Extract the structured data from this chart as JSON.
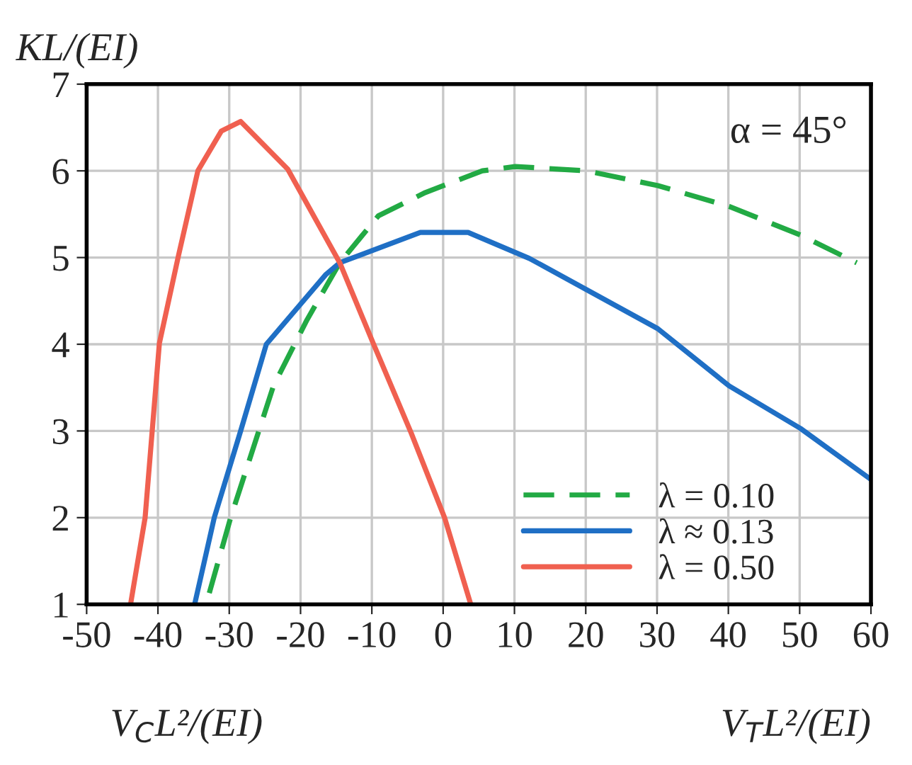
{
  "chart_data": {
    "type": "line",
    "ylabel": "KL/(EI)",
    "xlabel": "V$_{C}$L²/(EI)",
    "annotations": [
      "V$_{T}$L²/(EI)",
      "α = 45°"
    ],
    "xlim": [
      -50,
      60
    ],
    "xticks": [
      -50,
      -40,
      -30,
      -20,
      -10,
      0,
      10,
      20,
      30,
      40,
      50,
      60
    ],
    "ylim": [
      1,
      7
    ],
    "yticks": [
      1,
      2,
      3,
      4,
      5,
      6,
      7
    ],
    "grid": true,
    "legend": "bottom right",
    "marker": "none",
    "series": [
      {
        "name": "λ = 0.10",
        "color": "#22aa44",
        "line_style": "dashed",
        "x": [
          -32.8,
          -29.8,
          -23.8,
          -19.1,
          -14.5,
          -9.1,
          -2.5,
          5.5,
          10.1,
          20.1,
          30.1,
          40.1,
          50.1,
          58
        ],
        "values": [
          1.13,
          2.0,
          3.52,
          4.28,
          4.94,
          5.48,
          5.75,
          6.0,
          6.05,
          6.0,
          5.83,
          5.59,
          5.26,
          4.94
        ]
      },
      {
        "name": "λ ≈ 0.13",
        "color": "#1f6fc5",
        "line_style": "solid",
        "x": [
          -34.8,
          -32.1,
          -28.4,
          -24.8,
          -16.5,
          -14.5,
          -3.2,
          3.5,
          12.1,
          30.1,
          40.1,
          50.1,
          60
        ],
        "values": [
          1.02,
          2.0,
          3.0,
          4.0,
          4.8,
          4.94,
          5.29,
          5.29,
          4.99,
          4.18,
          3.52,
          3.03,
          2.44
        ]
      },
      {
        "name": "λ = 0.50",
        "color": "#f06050",
        "line_style": "solid",
        "x": [
          -43.8,
          -41.8,
          -39.8,
          -37.1,
          -34.4,
          -31.1,
          -28.4,
          -21.8,
          -14.5,
          -9.8,
          -4.5,
          0.2,
          3.8
        ],
        "values": [
          1.02,
          2.0,
          4.01,
          5.03,
          6.0,
          6.46,
          6.57,
          6.02,
          4.94,
          4.01,
          2.98,
          2.0,
          1.02
        ]
      }
    ]
  }
}
